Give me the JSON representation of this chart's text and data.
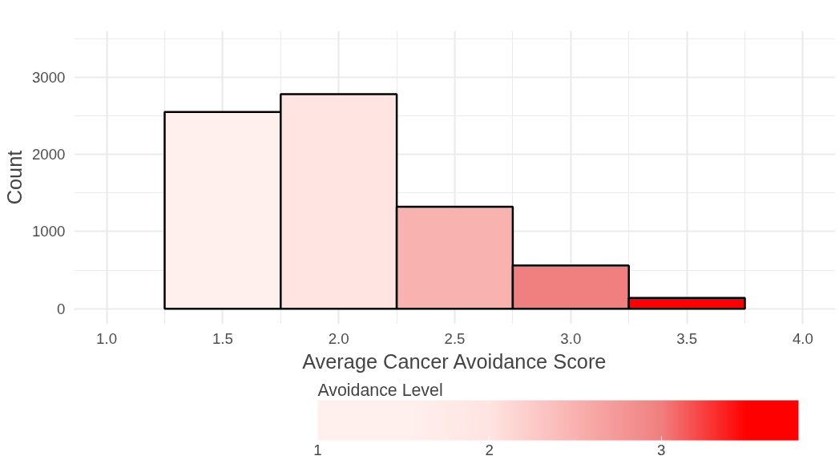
{
  "chart_data": {
    "type": "histogram",
    "xlabel": "Average Cancer Avoidance Score",
    "ylabel": "Count",
    "clabel": "Avoidance Level",
    "bins": [
      1.25,
      1.75,
      2.25,
      2.75,
      3.25,
      3.75
    ],
    "values": [
      2550,
      2780,
      1320,
      560,
      140
    ],
    "colors": [
      "#fff0ee",
      "#ffe4e1",
      "#f8b2b0",
      "#f08080",
      "#ff0000"
    ],
    "xlim": [
      0.86,
      4.14
    ],
    "ylim": [
      -200,
      3600
    ],
    "xticks": [
      {
        "value": 1,
        "label": "1.0"
      },
      {
        "value": 1.5,
        "label": "1.5"
      },
      {
        "value": 2,
        "label": "2.0"
      },
      {
        "value": 2.5,
        "label": "2.5"
      },
      {
        "value": 3,
        "label": "3.0"
      },
      {
        "value": 3.5,
        "label": "3.5"
      },
      {
        "value": 4,
        "label": "4.0"
      }
    ],
    "yticks": [
      0,
      1000,
      2000,
      3000
    ],
    "clim": [
      1,
      3.8
    ],
    "cticks": [
      1,
      2,
      3
    ],
    "grid": true
  }
}
